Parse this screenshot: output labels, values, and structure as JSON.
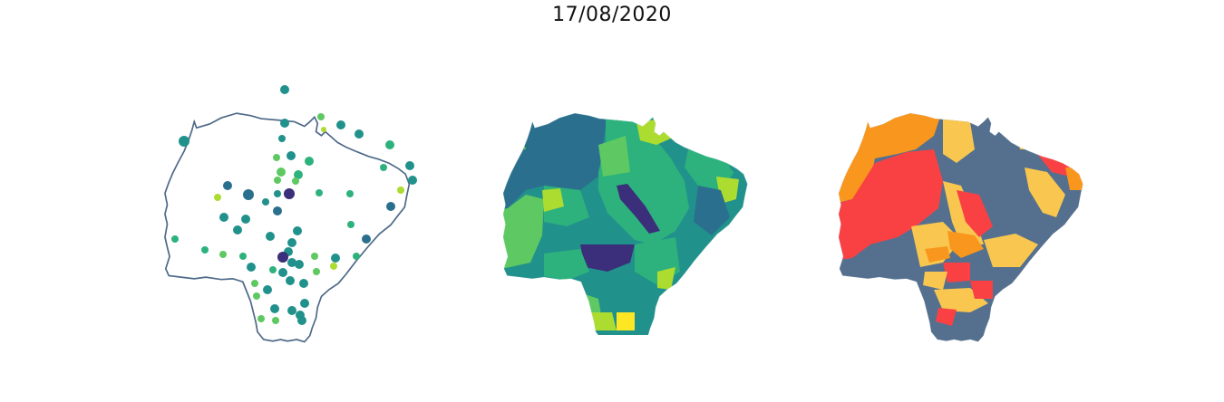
{
  "figure": {
    "title": "17/08/2020"
  },
  "colors": {
    "outline": "#4e6a88",
    "viridis_dark": "#3b2e7a",
    "viridis_blue": "#2b6f8e",
    "viridis_teal": "#21918c",
    "viridis_green": "#2db27d",
    "viridis_light_green": "#5ec962",
    "viridis_lime": "#addc30",
    "viridis_yellow": "#fde725",
    "slate": "#54708e",
    "red": "#f94144",
    "orange": "#f8961e",
    "yellow": "#f9c74f"
  },
  "maps": [
    {
      "name": "point-map",
      "type": "scatter-on-outline"
    },
    {
      "name": "viridis-choropleth",
      "type": "choropleth"
    },
    {
      "name": "category-choropleth",
      "type": "choropleth"
    }
  ]
}
